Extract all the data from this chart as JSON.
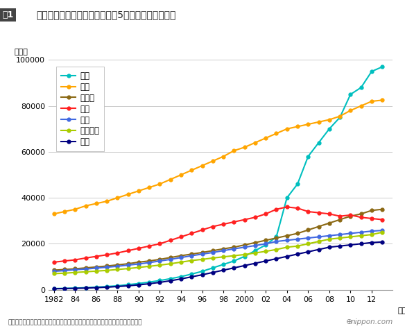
{
  "title_box": "図1",
  "title_main": "主要国における物理・化学関連5分野の論文数の推移",
  "ylabel": "論文数",
  "footer": "トムソン・ロイターのデータに基づき、豊田長康・鈴鹿医療科学大学学長が作成",
  "years": [
    1982,
    1983,
    1984,
    1985,
    1986,
    1987,
    1988,
    1989,
    1990,
    1991,
    1992,
    1993,
    1994,
    1995,
    1996,
    1997,
    1998,
    1999,
    2000,
    2001,
    2002,
    2003,
    2004,
    2005,
    2006,
    2007,
    2008,
    2009,
    2010,
    2011,
    2012,
    2013
  ],
  "series": {
    "中国": {
      "color": "#00BFBF",
      "values": [
        500,
        600,
        700,
        900,
        1100,
        1400,
        1700,
        2200,
        2700,
        3300,
        4000,
        4800,
        5700,
        6800,
        8000,
        9500,
        11000,
        12500,
        14500,
        17000,
        19500,
        23000,
        40000,
        46000,
        58000,
        64000,
        70000,
        75000,
        85000,
        88000,
        95000,
        97000
      ]
    },
    "米国": {
      "color": "#FFA500",
      "values": [
        33000,
        34000,
        35000,
        36500,
        37500,
        38500,
        40000,
        41500,
        43000,
        44500,
        46000,
        48000,
        50000,
        52000,
        54000,
        56000,
        58000,
        60500,
        62000,
        64000,
        66000,
        68000,
        70000,
        71000,
        72000,
        73000,
        74000,
        75500,
        78000,
        80000,
        82000,
        82500
      ]
    },
    "ドイツ": {
      "color": "#8B6914",
      "values": [
        8500,
        8800,
        9100,
        9500,
        9900,
        10300,
        10800,
        11300,
        12000,
        12500,
        13200,
        14000,
        14800,
        15500,
        16200,
        17000,
        17800,
        18500,
        19500,
        20500,
        21500,
        22500,
        23500,
        24500,
        26000,
        27500,
        29000,
        30500,
        32000,
        33000,
        34500,
        35000
      ]
    },
    "日本": {
      "color": "#FF2020",
      "values": [
        12000,
        12500,
        13000,
        13800,
        14500,
        15200,
        16000,
        17000,
        18000,
        19000,
        20000,
        21500,
        23000,
        24500,
        26000,
        27500,
        28500,
        29500,
        30500,
        31500,
        33000,
        35000,
        36000,
        35500,
        34000,
        33500,
        33000,
        32000,
        32500,
        31500,
        31000,
        30500
      ]
    },
    "英国": {
      "color": "#4169E1",
      "values": [
        8000,
        8300,
        8700,
        9000,
        9400,
        9800,
        10200,
        10700,
        11200,
        11800,
        12500,
        13200,
        14000,
        14800,
        15500,
        16200,
        17000,
        17800,
        18500,
        19200,
        20000,
        21000,
        21500,
        22000,
        22500,
        23000,
        23500,
        24000,
        24500,
        25000,
        25500,
        25800
      ]
    },
    "フランス": {
      "color": "#AACC00",
      "values": [
        7000,
        7200,
        7500,
        7800,
        8100,
        8400,
        8800,
        9200,
        9700,
        10200,
        10700,
        11300,
        12000,
        12700,
        13200,
        13800,
        14300,
        14800,
        15300,
        16000,
        16700,
        17500,
        18500,
        19000,
        20000,
        21000,
        22000,
        22500,
        23000,
        23500,
        24000,
        25000
      ]
    },
    "韓国": {
      "color": "#000080",
      "values": [
        400,
        500,
        600,
        700,
        900,
        1100,
        1400,
        1700,
        2100,
        2600,
        3200,
        3900,
        4700,
        5600,
        6500,
        7500,
        8500,
        9500,
        10500,
        11500,
        12500,
        13500,
        14500,
        15500,
        16500,
        17500,
        18500,
        19000,
        19500,
        20000,
        20500,
        20800
      ]
    }
  },
  "ylim": [
    0,
    100000
  ],
  "yticks": [
    0,
    20000,
    40000,
    60000,
    80000,
    100000
  ],
  "ytick_labels": [
    "0",
    "20000",
    "40000",
    "60000",
    "80000",
    "100000"
  ],
  "xtick_labels": [
    "1982",
    "84",
    "86",
    "88",
    "90",
    "92",
    "94",
    "96",
    "98",
    "2000",
    "02",
    "04",
    "06",
    "08",
    "10",
    "12"
  ],
  "xtick_positions": [
    1982,
    1984,
    1986,
    1988,
    1990,
    1992,
    1994,
    1996,
    1998,
    2000,
    2002,
    2004,
    2006,
    2008,
    2010,
    2012
  ],
  "legend_order": [
    "中国",
    "米国",
    "ドイツ",
    "日本",
    "英国",
    "フランス",
    "韓国"
  ],
  "bg_color": "#ffffff",
  "grid_color": "#cccccc"
}
